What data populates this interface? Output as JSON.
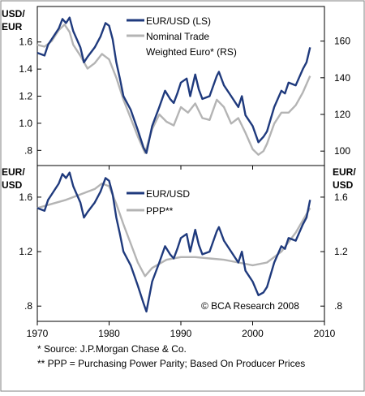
{
  "colors": {
    "eurusd": "#1f3a7d",
    "secondary": "#b4b4b4",
    "frame": "#000000"
  },
  "x_axis": {
    "ticks": [
      "1970",
      "1980",
      "1990",
      "2000",
      "2010"
    ],
    "tick_values": [
      1970,
      1980,
      1990,
      2000,
      2010
    ],
    "range": [
      1970,
      2010
    ]
  },
  "top_panel": {
    "left_unit": [
      "USD/",
      "EUR"
    ],
    "left_ticks": [
      "1.6",
      "1.4",
      "1.2",
      "1.0",
      ".8"
    ],
    "right_ticks": [
      "160",
      "140",
      "120",
      "100"
    ],
    "legend": [
      "EUR/USD (LS)",
      "Nominal Trade",
      "Weighted Euro* (RS)"
    ]
  },
  "bottom_panel": {
    "left_unit": [
      "EUR/",
      "USD"
    ],
    "right_unit": [
      "EUR/",
      "USD"
    ],
    "left_ticks": [
      "1.6",
      "1.2",
      ".8"
    ],
    "right_ticks": [
      "1.6",
      "1.2",
      ".8"
    ],
    "legend": [
      "EUR/USD",
      "PPP**"
    ],
    "credit": "© BCA Research 2008"
  },
  "footnotes": [
    "*  Source: J.P.Morgan Chase & Co.",
    "** PPP = Purchasing Power Parity; Based On Producer Prices"
  ],
  "chart_data": [
    {
      "type": "line",
      "ylim": [
        0.7,
        1.85
      ],
      "y2lim": [
        93,
        178
      ],
      "series": [
        {
          "name": "EUR/USD (LS)",
          "axis": "left",
          "x": [
            1970,
            1971,
            1971.5,
            1972,
            1973,
            1973.5,
            1974,
            1974.5,
            1975,
            1975.5,
            1976,
            1976.5,
            1977,
            1978,
            1978.8,
            1979.5,
            1980,
            1980.5,
            1981,
            1981.5,
            1982,
            1983,
            1984,
            1984.8,
            1985.2,
            1986,
            1987,
            1987.8,
            1988.5,
            1989,
            1989.5,
            1990,
            1990.8,
            1991.3,
            1992,
            1992.5,
            1993,
            1994,
            1995,
            1995.3,
            1996,
            1997,
            1998,
            1998.5,
            1999,
            2000,
            2000.8,
            2001.5,
            2002,
            2003,
            2004,
            2004.5,
            2005,
            2006,
            2007,
            2007.5,
            2008
          ],
          "values": [
            1.52,
            1.5,
            1.58,
            1.62,
            1.7,
            1.77,
            1.74,
            1.78,
            1.68,
            1.62,
            1.56,
            1.45,
            1.49,
            1.56,
            1.64,
            1.74,
            1.72,
            1.62,
            1.45,
            1.33,
            1.2,
            1.1,
            0.95,
            0.82,
            0.78,
            0.98,
            1.12,
            1.24,
            1.18,
            1.15,
            1.22,
            1.3,
            1.33,
            1.2,
            1.36,
            1.25,
            1.18,
            1.2,
            1.35,
            1.38,
            1.28,
            1.2,
            1.12,
            1.2,
            1.06,
            0.98,
            0.86,
            0.9,
            0.94,
            1.12,
            1.24,
            1.22,
            1.3,
            1.28,
            1.4,
            1.45,
            1.56
          ]
        },
        {
          "name": "Nominal Trade Weighted Euro* (RS)",
          "axis": "right",
          "x": [
            1970,
            1971,
            1972,
            1973,
            1973.8,
            1974.5,
            1975,
            1976,
            1977,
            1978,
            1979,
            1980,
            1981,
            1982,
            1983,
            1984,
            1985,
            1986,
            1987,
            1988,
            1989,
            1990,
            1991,
            1992,
            1993,
            1994,
            1995,
            1996,
            1997,
            1998,
            1999,
            2000,
            2000.8,
            2001.5,
            2002,
            2003,
            2004,
            2005,
            2006,
            2007,
            2008
          ],
          "values": [
            158,
            157,
            160,
            166,
            169,
            165,
            158,
            152,
            145,
            148,
            153,
            150,
            140,
            128,
            118,
            108,
            99,
            112,
            120,
            116,
            114,
            124,
            121,
            126,
            118,
            117,
            128,
            124,
            115,
            118,
            110,
            101,
            98,
            100,
            104,
            115,
            121,
            121,
            125,
            132,
            141
          ]
        }
      ]
    },
    {
      "type": "line",
      "ylim": [
        0.7,
        1.82
      ],
      "series": [
        {
          "name": "EUR/USD",
          "x": [
            1970,
            1971,
            1971.5,
            1972,
            1973,
            1973.5,
            1974,
            1974.5,
            1975,
            1975.5,
            1976,
            1976.5,
            1977,
            1978,
            1978.8,
            1979.5,
            1980,
            1980.5,
            1981,
            1981.5,
            1982,
            1983,
            1984,
            1984.8,
            1985.2,
            1986,
            1987,
            1987.8,
            1988.5,
            1989,
            1989.5,
            1990,
            1990.8,
            1991.3,
            1992,
            1992.5,
            1993,
            1994,
            1995,
            1995.3,
            1996,
            1997,
            1998,
            1998.5,
            1999,
            2000,
            2000.8,
            2001.5,
            2002,
            2003,
            2004,
            2004.5,
            2005,
            2006,
            2007,
            2007.5,
            2008
          ],
          "values": [
            1.52,
            1.5,
            1.58,
            1.62,
            1.7,
            1.77,
            1.74,
            1.78,
            1.68,
            1.62,
            1.56,
            1.45,
            1.49,
            1.56,
            1.64,
            1.74,
            1.72,
            1.62,
            1.45,
            1.33,
            1.2,
            1.1,
            0.95,
            0.82,
            0.76,
            0.98,
            1.12,
            1.24,
            1.18,
            1.15,
            1.22,
            1.3,
            1.33,
            1.2,
            1.36,
            1.25,
            1.18,
            1.2,
            1.35,
            1.38,
            1.28,
            1.2,
            1.12,
            1.2,
            1.06,
            0.98,
            0.88,
            0.9,
            0.94,
            1.12,
            1.24,
            1.22,
            1.3,
            1.28,
            1.4,
            1.45,
            1.58
          ]
        },
        {
          "name": "PPP**",
          "x": [
            1970,
            1972,
            1974,
            1976,
            1978,
            1979,
            1980,
            1981,
            1982,
            1983,
            1984,
            1985,
            1986,
            1988,
            1990,
            1992,
            1994,
            1996,
            1998,
            2000,
            2002,
            2004,
            2006,
            2008
          ],
          "values": [
            1.52,
            1.55,
            1.58,
            1.62,
            1.66,
            1.7,
            1.68,
            1.55,
            1.4,
            1.26,
            1.12,
            1.02,
            1.08,
            1.14,
            1.16,
            1.16,
            1.15,
            1.14,
            1.12,
            1.1,
            1.12,
            1.2,
            1.34,
            1.52
          ]
        }
      ]
    }
  ]
}
